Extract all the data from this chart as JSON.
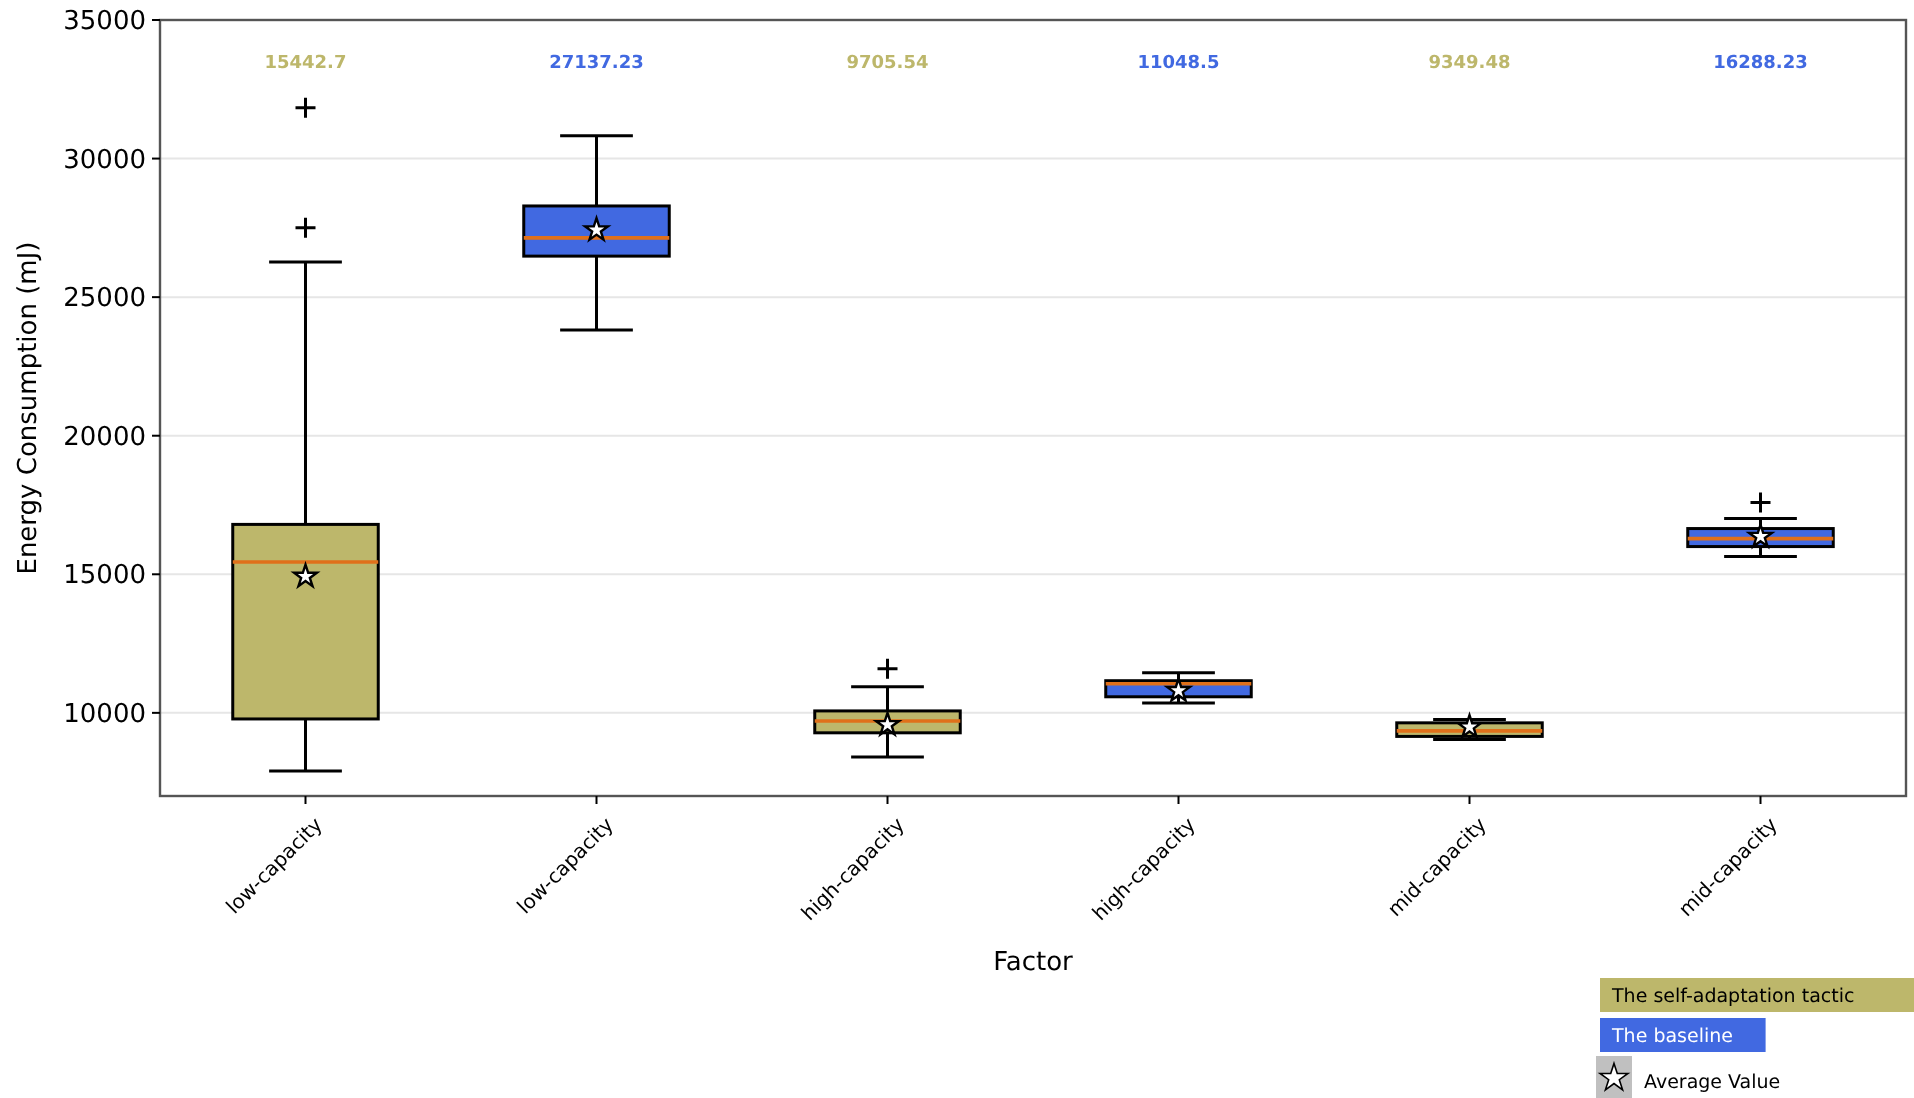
{
  "chart_data": {
    "type": "box",
    "xlabel": "Factor",
    "ylabel": "Energy Consumption (mJ)",
    "categories": [
      "low-capacity",
      "low-capacity",
      "high-capacity",
      "high-capacity",
      "mid-capacity",
      "mid-capacity"
    ],
    "series": [
      {
        "name": "The self-adaptation tactic",
        "color": "#bdb76b",
        "boxes": [
          {
            "low": 7900,
            "q1": 9780,
            "median": 15442.7,
            "q3": 16800,
            "high": 26270,
            "outliers": [
              27500,
              31830
            ]
          },
          null,
          {
            "low": 8410,
            "q1": 9280,
            "median": 9705.54,
            "q3": 10070,
            "high": 10940,
            "outliers": [
              11590
            ]
          },
          null,
          {
            "low": 9040,
            "q1": 9150,
            "median": 9349.48,
            "q3": 9640,
            "high": 9760
          },
          null
        ]
      },
      {
        "name": "The baseline",
        "color": "#4169e1",
        "boxes": [
          null,
          {
            "low": 23810,
            "q1": 26480,
            "median": 27137.23,
            "q3": 28290,
            "high": 30820
          },
          null,
          {
            "low": 10360,
            "q1": 10580,
            "median": 11048.5,
            "q3": 11160,
            "high": 11450
          },
          null,
          {
            "low": 15640,
            "q1": 16000,
            "median": 16288.23,
            "q3": 16650,
            "high": 17010,
            "outliers": [
              17590
            ]
          }
        ]
      },
      {
        "name": "Average Value",
        "type": "scatter",
        "color": "#ffffff",
        "marker": "star",
        "values": [
          14920,
          27420,
          9570,
          10800,
          9490,
          16360
        ]
      }
    ],
    "annotations": [
      "15442.7",
      "27137.23",
      "9705.54",
      "11048.5",
      "9349.48",
      "16288.23"
    ],
    "ylim": [
      7000,
      35000
    ],
    "yticks": [
      10000,
      15000,
      20000,
      25000,
      30000,
      35000
    ],
    "grid": "y",
    "legend": "bottom right"
  }
}
